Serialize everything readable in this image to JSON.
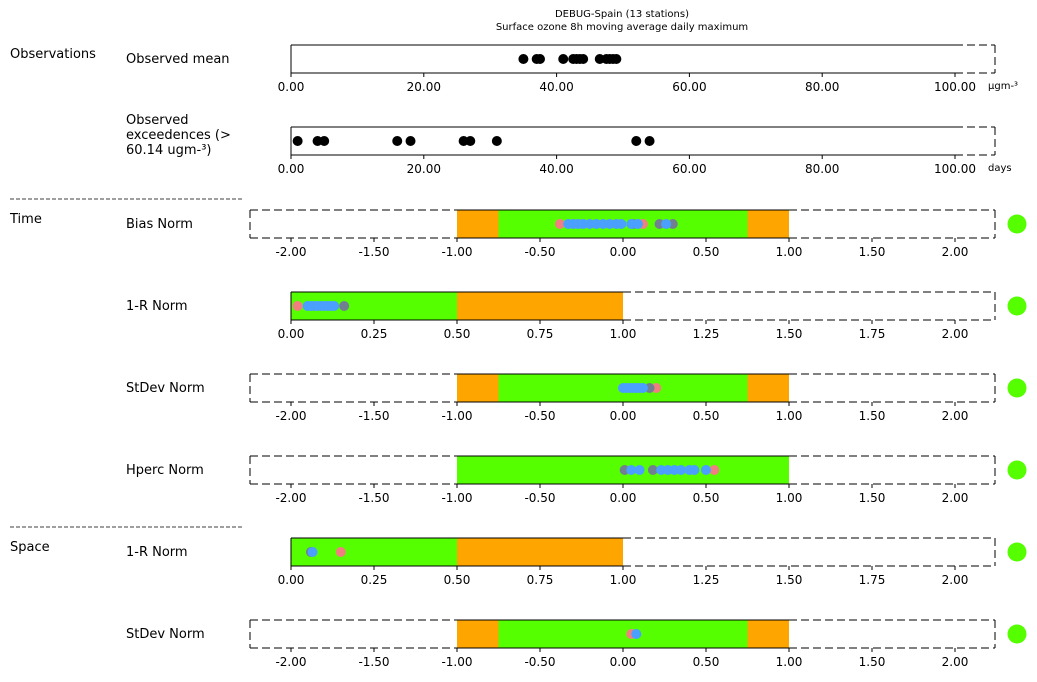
{
  "title_line1": "DEBUG-Spain (13 stations)",
  "title_line2": "Surface ozone 8h moving average daily maximum",
  "colors": {
    "green": "#55ff00",
    "orange": "#ffa500",
    "black": "#000000",
    "pink": "#f08080",
    "gray": "#708090",
    "blue": "#4a9fff"
  },
  "chart_data": [
    {
      "type": "scatter",
      "section": "Observations",
      "row_label": "Observed mean",
      "unit": "μgm-³",
      "xlim": [
        0,
        100
      ],
      "ticks": [
        "0.00",
        "20.00",
        "40.00",
        "60.00",
        "80.00",
        "100.00"
      ],
      "points": [
        {
          "x": 35,
          "c": "black"
        },
        {
          "x": 37,
          "c": "black"
        },
        {
          "x": 37.5,
          "c": "black"
        },
        {
          "x": 41,
          "c": "black"
        },
        {
          "x": 42.5,
          "c": "black"
        },
        {
          "x": 43,
          "c": "black"
        },
        {
          "x": 43.5,
          "c": "black"
        },
        {
          "x": 44,
          "c": "black"
        },
        {
          "x": 46.5,
          "c": "black"
        },
        {
          "x": 47.5,
          "c": "black"
        },
        {
          "x": 48,
          "c": "black"
        },
        {
          "x": 48.5,
          "c": "black"
        },
        {
          "x": 49,
          "c": "black"
        }
      ]
    },
    {
      "type": "scatter",
      "section": "",
      "row_label": "Observed exceedences (> 60.14 ugm-³)",
      "unit": "days",
      "xlim": [
        0,
        100
      ],
      "ticks": [
        "0.00",
        "20.00",
        "40.00",
        "60.00",
        "80.00",
        "100.00"
      ],
      "points": [
        {
          "x": 1,
          "c": "black"
        },
        {
          "x": 4,
          "c": "black"
        },
        {
          "x": 5,
          "c": "black"
        },
        {
          "x": 16,
          "c": "black"
        },
        {
          "x": 18,
          "c": "black"
        },
        {
          "x": 26,
          "c": "black"
        },
        {
          "x": 27,
          "c": "black"
        },
        {
          "x": 31,
          "c": "black"
        },
        {
          "x": 52,
          "c": "black"
        },
        {
          "x": 54,
          "c": "black"
        }
      ]
    },
    {
      "type": "scatter",
      "section": "Time",
      "row_label": "Bias Norm",
      "xlim": [
        -2,
        2
      ],
      "ticks": [
        "-2.00",
        "-1.50",
        "-1.00",
        "-0.50",
        "0.00",
        "0.50",
        "1.00",
        "1.50",
        "2.00"
      ],
      "bands": [
        [
          -1,
          -0.75,
          "orange"
        ],
        [
          -0.75,
          0.75,
          "green"
        ],
        [
          0.75,
          1,
          "orange"
        ]
      ],
      "status": "green",
      "points": [
        {
          "x": -0.38,
          "c": "pink"
        },
        {
          "x": 0.12,
          "c": "pink"
        },
        {
          "x": 0.22,
          "c": "gray"
        },
        {
          "x": 0.3,
          "c": "gray"
        },
        {
          "x": 0.06,
          "c": "gray"
        },
        {
          "x": -0.33,
          "c": "blue"
        },
        {
          "x": -0.3,
          "c": "blue"
        },
        {
          "x": -0.27,
          "c": "blue"
        },
        {
          "x": -0.24,
          "c": "blue"
        },
        {
          "x": -0.2,
          "c": "blue"
        },
        {
          "x": -0.16,
          "c": "blue"
        },
        {
          "x": -0.12,
          "c": "blue"
        },
        {
          "x": -0.08,
          "c": "blue"
        },
        {
          "x": -0.04,
          "c": "blue"
        },
        {
          "x": -0.01,
          "c": "blue"
        },
        {
          "x": 0.05,
          "c": "blue"
        },
        {
          "x": 0.09,
          "c": "blue"
        },
        {
          "x": 0.26,
          "c": "blue"
        }
      ]
    },
    {
      "type": "scatter",
      "section": "",
      "row_label": "1-R Norm",
      "xlim": [
        0,
        2
      ],
      "ticks": [
        "0.00",
        "0.25",
        "0.50",
        "0.75",
        "1.00",
        "1.25",
        "1.50",
        "1.75",
        "2.00"
      ],
      "bands": [
        [
          0,
          0.5,
          "green"
        ],
        [
          0.5,
          1,
          "orange"
        ]
      ],
      "status": "green",
      "points": [
        {
          "x": 0.02,
          "c": "pink"
        },
        {
          "x": 0.16,
          "c": "gray"
        },
        {
          "x": 0.05,
          "c": "blue"
        },
        {
          "x": 0.06,
          "c": "blue"
        },
        {
          "x": 0.07,
          "c": "blue"
        },
        {
          "x": 0.08,
          "c": "blue"
        },
        {
          "x": 0.09,
          "c": "blue"
        },
        {
          "x": 0.1,
          "c": "blue"
        },
        {
          "x": 0.11,
          "c": "blue"
        },
        {
          "x": 0.12,
          "c": "blue"
        },
        {
          "x": 0.13,
          "c": "blue"
        }
      ]
    },
    {
      "type": "scatter",
      "section": "",
      "row_label": "StDev Norm",
      "xlim": [
        -2,
        2
      ],
      "ticks": [
        "-2.00",
        "-1.50",
        "-1.00",
        "-0.50",
        "0.00",
        "0.50",
        "1.00",
        "1.50",
        "2.00"
      ],
      "bands": [
        [
          -1,
          -0.75,
          "orange"
        ],
        [
          -0.75,
          0.75,
          "green"
        ],
        [
          0.75,
          1,
          "orange"
        ]
      ],
      "status": "green",
      "points": [
        {
          "x": 0.2,
          "c": "pink"
        },
        {
          "x": 0.16,
          "c": "gray"
        },
        {
          "x": 0.0,
          "c": "blue"
        },
        {
          "x": 0.02,
          "c": "blue"
        },
        {
          "x": 0.04,
          "c": "blue"
        },
        {
          "x": 0.06,
          "c": "blue"
        },
        {
          "x": 0.08,
          "c": "blue"
        },
        {
          "x": 0.1,
          "c": "blue"
        },
        {
          "x": 0.12,
          "c": "blue"
        }
      ]
    },
    {
      "type": "scatter",
      "section": "",
      "row_label": "Hperc Norm",
      "xlim": [
        -2,
        2
      ],
      "ticks": [
        "-2.00",
        "-1.50",
        "-1.00",
        "-0.50",
        "0.00",
        "0.50",
        "1.00",
        "1.50",
        "2.00"
      ],
      "bands": [
        [
          -1,
          1,
          "green"
        ]
      ],
      "status": "green",
      "points": [
        {
          "x": 0.55,
          "c": "pink"
        },
        {
          "x": 0.01,
          "c": "gray"
        },
        {
          "x": 0.18,
          "c": "gray"
        },
        {
          "x": 0.05,
          "c": "blue"
        },
        {
          "x": 0.1,
          "c": "blue"
        },
        {
          "x": 0.23,
          "c": "blue"
        },
        {
          "x": 0.27,
          "c": "blue"
        },
        {
          "x": 0.31,
          "c": "blue"
        },
        {
          "x": 0.35,
          "c": "blue"
        },
        {
          "x": 0.4,
          "c": "blue"
        },
        {
          "x": 0.43,
          "c": "blue"
        },
        {
          "x": 0.5,
          "c": "blue"
        }
      ]
    },
    {
      "type": "scatter",
      "section": "Space",
      "row_label": "1-R Norm",
      "xlim": [
        0,
        2
      ],
      "ticks": [
        "0.00",
        "0.25",
        "0.50",
        "0.75",
        "1.00",
        "1.25",
        "1.50",
        "1.75",
        "2.00"
      ],
      "bands": [
        [
          0,
          0.5,
          "green"
        ],
        [
          0.5,
          1,
          "orange"
        ]
      ],
      "status": "green",
      "points": [
        {
          "x": 0.15,
          "c": "pink"
        },
        {
          "x": 0.06,
          "c": "gray"
        },
        {
          "x": 0.065,
          "c": "blue"
        }
      ]
    },
    {
      "type": "scatter",
      "section": "",
      "row_label": "StDev Norm",
      "xlim": [
        -2,
        2
      ],
      "ticks": [
        "-2.00",
        "-1.50",
        "-1.00",
        "-0.50",
        "0.00",
        "0.50",
        "1.00",
        "1.50",
        "2.00"
      ],
      "bands": [
        [
          -1,
          -0.75,
          "orange"
        ],
        [
          -0.75,
          0.75,
          "green"
        ],
        [
          0.75,
          1,
          "orange"
        ]
      ],
      "status": "green",
      "points": [
        {
          "x": 0.05,
          "c": "pink"
        },
        {
          "x": 0.08,
          "c": "blue"
        }
      ]
    }
  ]
}
